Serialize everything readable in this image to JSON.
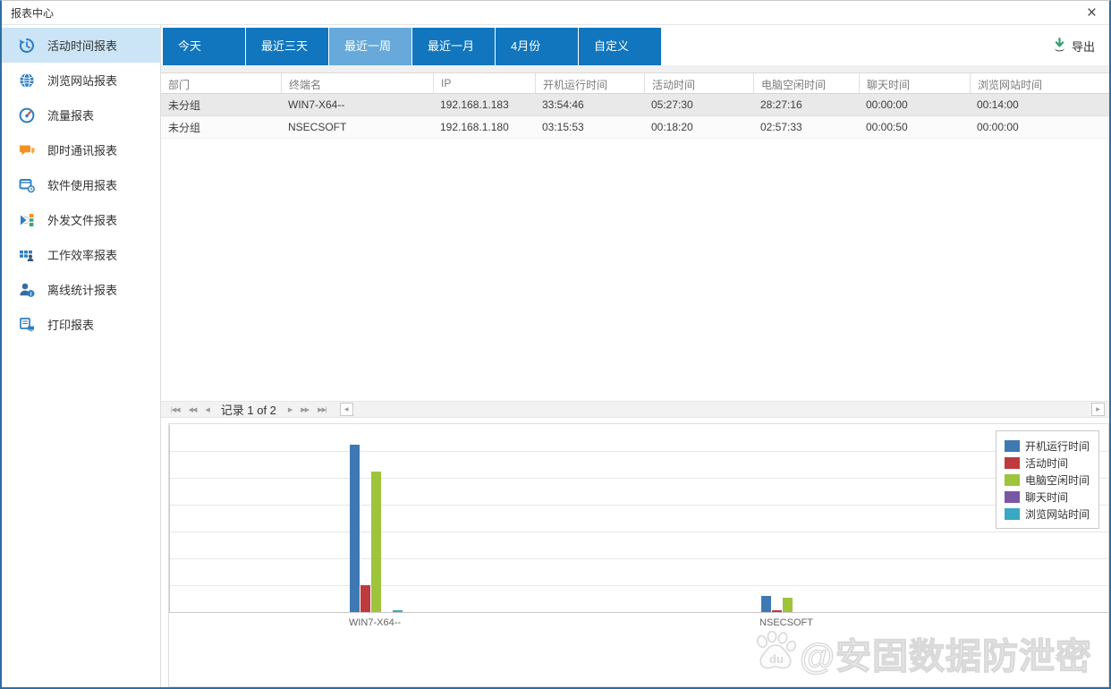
{
  "window": {
    "title": "报表中心"
  },
  "icons": {
    "close": "×",
    "nav_first": "|◀◀",
    "nav_prev_page": "◀◀",
    "nav_prev": "◀",
    "nav_next": "▶",
    "nav_next_page": "▶▶",
    "nav_last": "▶▶|",
    "scroll_left": "◀",
    "scroll_right": "▶"
  },
  "sidebar": {
    "items": [
      {
        "label": "活动时间报表",
        "icon": "history-icon",
        "selected": true
      },
      {
        "label": "浏览网站报表",
        "icon": "globe-icon",
        "selected": false
      },
      {
        "label": "流量报表",
        "icon": "gauge-icon",
        "selected": false
      },
      {
        "label": "即时通讯报表",
        "icon": "chat-icon",
        "selected": false
      },
      {
        "label": "软件使用报表",
        "icon": "software-usage-icon",
        "selected": false
      },
      {
        "label": "外发文件报表",
        "icon": "outgoing-file-icon",
        "selected": false
      },
      {
        "label": "工作效率报表",
        "icon": "work-efficiency-icon",
        "selected": false
      },
      {
        "label": "离线统计报表",
        "icon": "offline-stats-icon",
        "selected": false
      },
      {
        "label": "打印报表",
        "icon": "print-icon",
        "selected": false
      }
    ]
  },
  "toolbar": {
    "tabs": [
      {
        "label": "今天",
        "active": false
      },
      {
        "label": "最近三天",
        "active": false
      },
      {
        "label": "最近一周",
        "active": true
      },
      {
        "label": "最近一月",
        "active": false
      },
      {
        "label": "4月份",
        "active": false
      },
      {
        "label": "自定义",
        "active": false
      }
    ],
    "export_label": "导出"
  },
  "table": {
    "columns": [
      "部门",
      "终端名",
      "IP",
      "开机运行时间",
      "活动时间",
      "电脑空闲时间",
      "聊天时间",
      "浏览网站时间"
    ],
    "rows": [
      [
        "未分组",
        "WIN7-X64--",
        "192.168.1.183",
        "33:54:46",
        "05:27:30",
        "28:27:16",
        "00:00:00",
        "00:14:00"
      ],
      [
        "未分组",
        "NSECSOFT",
        "192.168.1.180",
        "03:15:53",
        "00:18:20",
        "02:57:33",
        "00:00:50",
        "00:00:00"
      ]
    ]
  },
  "pager": {
    "record_text": "记录 1 of 2"
  },
  "chart_data": {
    "type": "bar",
    "categories": [
      "WIN7-X64--",
      "NSECSOFT"
    ],
    "series": [
      {
        "name": "开机运行时间",
        "color": "#3E79B4",
        "values": [
          33.91,
          3.26
        ]
      },
      {
        "name": "活动时间",
        "color": "#BE3A3C",
        "values": [
          5.46,
          0.31
        ]
      },
      {
        "name": "电脑空闲时间",
        "color": "#9DC43B",
        "values": [
          28.45,
          2.96
        ]
      },
      {
        "name": "聊天时间",
        "color": "#7A57A4",
        "values": [
          0,
          0.01
        ]
      },
      {
        "name": "浏览网站时间",
        "color": "#38A8C4",
        "values": [
          0.23,
          0
        ]
      }
    ],
    "ylim": [
      0,
      38
    ],
    "values_unit": "hours (from hh:mm:ss in table)",
    "grid": true,
    "legend_position": "top-right",
    "xlabel": "",
    "ylabel": "",
    "title": ""
  },
  "watermark": {
    "text": "@安固数据防泄密",
    "badge": "du"
  }
}
